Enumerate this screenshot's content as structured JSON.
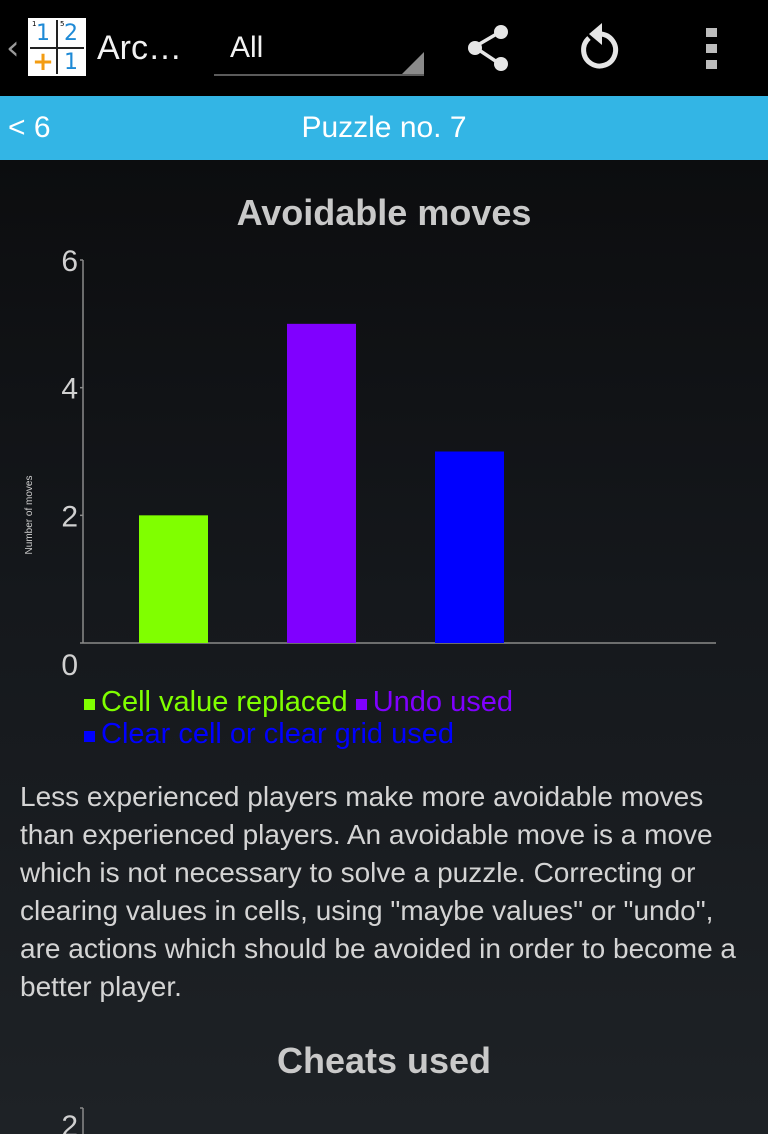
{
  "action_bar": {
    "app_title": "Arc…",
    "logo_cells": [
      {
        "digit": "1",
        "cage": "1"
      },
      {
        "digit": "2",
        "cage": "5"
      },
      {
        "digit": "+",
        "cage": ""
      },
      {
        "digit": "1",
        "cage": ""
      }
    ],
    "spinner_value": "All",
    "icons": {
      "up": "chevron-left-icon",
      "share": "share-icon",
      "reset": "refresh-icon",
      "overflow": "overflow-menu-icon"
    }
  },
  "nav": {
    "prev_label": "< 6",
    "title": "Puzzle no. 7"
  },
  "sections": {
    "avoidable_title": "Avoidable moves",
    "description": "Less experienced players make more avoidable moves than experienced players. An avoidable move is a move which is not necessary to solve a puzzle. Correcting or clearing values in cells, using \"maybe values\" or \"undo\", are actions which should be avoided in order to become a better player.",
    "cheats_title": "Cheats used"
  },
  "chart_data": [
    {
      "type": "bar",
      "title": "Avoidable moves",
      "ylabel": "Number of moves",
      "xlabel": "",
      "ylim": [
        0,
        6
      ],
      "yticks": [
        "0",
        "2",
        "4",
        "6"
      ],
      "grid": false,
      "legend_placement": "bottom",
      "series": [
        {
          "name": "Cell value replaced",
          "value": 2,
          "color": "#80ff00"
        },
        {
          "name": "Undo used",
          "value": 5,
          "color": "#8000ff"
        },
        {
          "name": "Clear cell or clear grid used",
          "value": 3,
          "color": "#0000ff"
        }
      ]
    },
    {
      "type": "bar",
      "title": "Cheats used",
      "ylim": [
        0,
        2
      ],
      "yticks_visible": [
        "2"
      ]
    }
  ]
}
